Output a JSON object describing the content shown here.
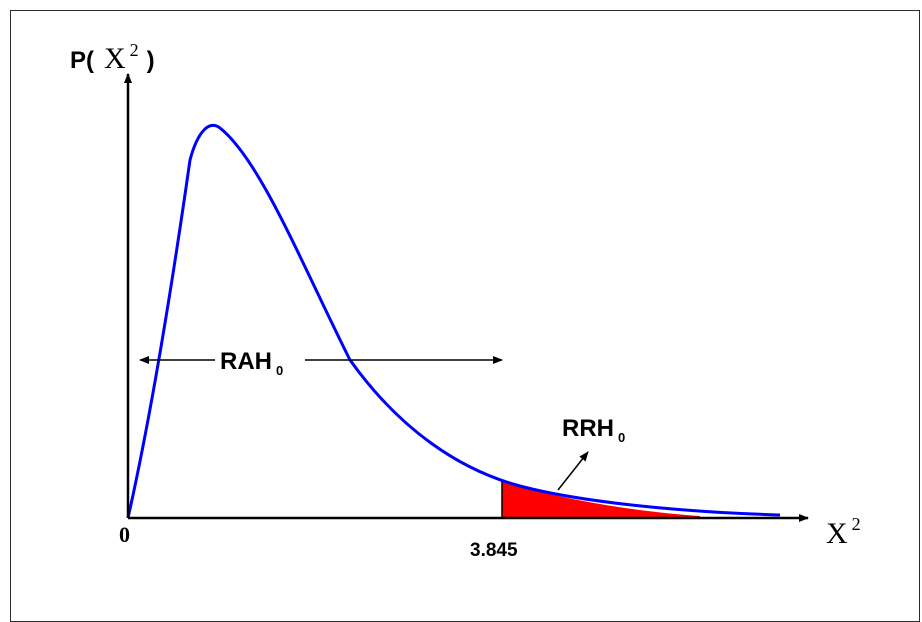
{
  "y_axis": {
    "label_prefix": "P(",
    "label_var": "X",
    "label_exp": "2",
    "label_suffix": ")"
  },
  "x_axis": {
    "label_var": "X",
    "label_exp": "2"
  },
  "origin_label": "0",
  "critical_value_label": "3.845",
  "acceptance_region": {
    "label_main": "RAH",
    "label_sub": "0"
  },
  "rejection_region": {
    "label_main": "RRH",
    "label_sub": "0",
    "fill_color": "#ff0000"
  },
  "curve_color": "#0000ff"
}
